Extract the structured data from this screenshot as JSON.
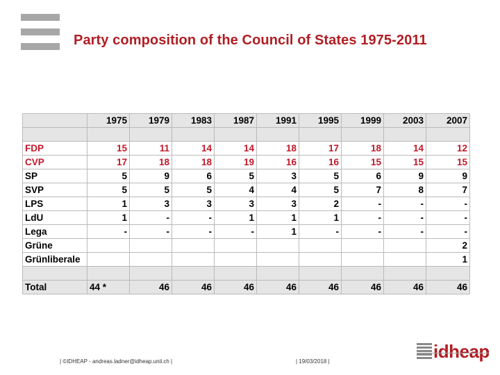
{
  "slide": {
    "title": "Party composition of the Council of States 1975-2011"
  },
  "table": {
    "years": [
      "1975",
      "1979",
      "1983",
      "1987",
      "1991",
      "1995",
      "1999",
      "2003",
      "2007"
    ],
    "rows": [
      {
        "party": "FDP",
        "values": [
          "15",
          "11",
          "14",
          "14",
          "18",
          "17",
          "18",
          "14",
          "12"
        ],
        "highlight": true
      },
      {
        "party": "CVP",
        "values": [
          "17",
          "18",
          "18",
          "19",
          "16",
          "16",
          "15",
          "15",
          "15"
        ],
        "highlight": true
      },
      {
        "party": "SP",
        "values": [
          "5",
          "9",
          "6",
          "5",
          "3",
          "5",
          "6",
          "9",
          "9"
        ],
        "highlight": false
      },
      {
        "party": "SVP",
        "values": [
          "5",
          "5",
          "5",
          "4",
          "4",
          "5",
          "7",
          "8",
          "7"
        ],
        "highlight": false
      },
      {
        "party": "LPS",
        "values": [
          "1",
          "3",
          "3",
          "3",
          "3",
          "2",
          "-",
          "-",
          "-"
        ],
        "highlight": false
      },
      {
        "party": "LdU",
        "values": [
          "1",
          "-",
          "-",
          "1",
          "1",
          "1",
          "-",
          "-",
          "-"
        ],
        "highlight": false
      },
      {
        "party": "Lega",
        "values": [
          "-",
          "-",
          "-",
          "-",
          "1",
          "-",
          "-",
          "-",
          "-"
        ],
        "highlight": false
      },
      {
        "party": "Grüne",
        "values": [
          "",
          "",
          "",
          "",
          "",
          "",
          "",
          "",
          "2"
        ],
        "highlight": false
      },
      {
        "party": "Grünliberale",
        "values": [
          "",
          "",
          "",
          "",
          "",
          "",
          "",
          "",
          "1"
        ],
        "highlight": false
      }
    ],
    "total": {
      "label": "Total",
      "values": [
        "44 *",
        "46",
        "46",
        "46",
        "46",
        "46",
        "46",
        "46",
        "46"
      ]
    }
  },
  "footer": {
    "credit": "| ©IDHEAP - andreas.ladner@idheap.unil.ch |",
    "date": "| 19/03/2018 |",
    "brand": "idheap"
  },
  "colors": {
    "accent_red": "#b01e23",
    "grey": "#a7a7a7",
    "header_fill": "#e5e5e5"
  }
}
